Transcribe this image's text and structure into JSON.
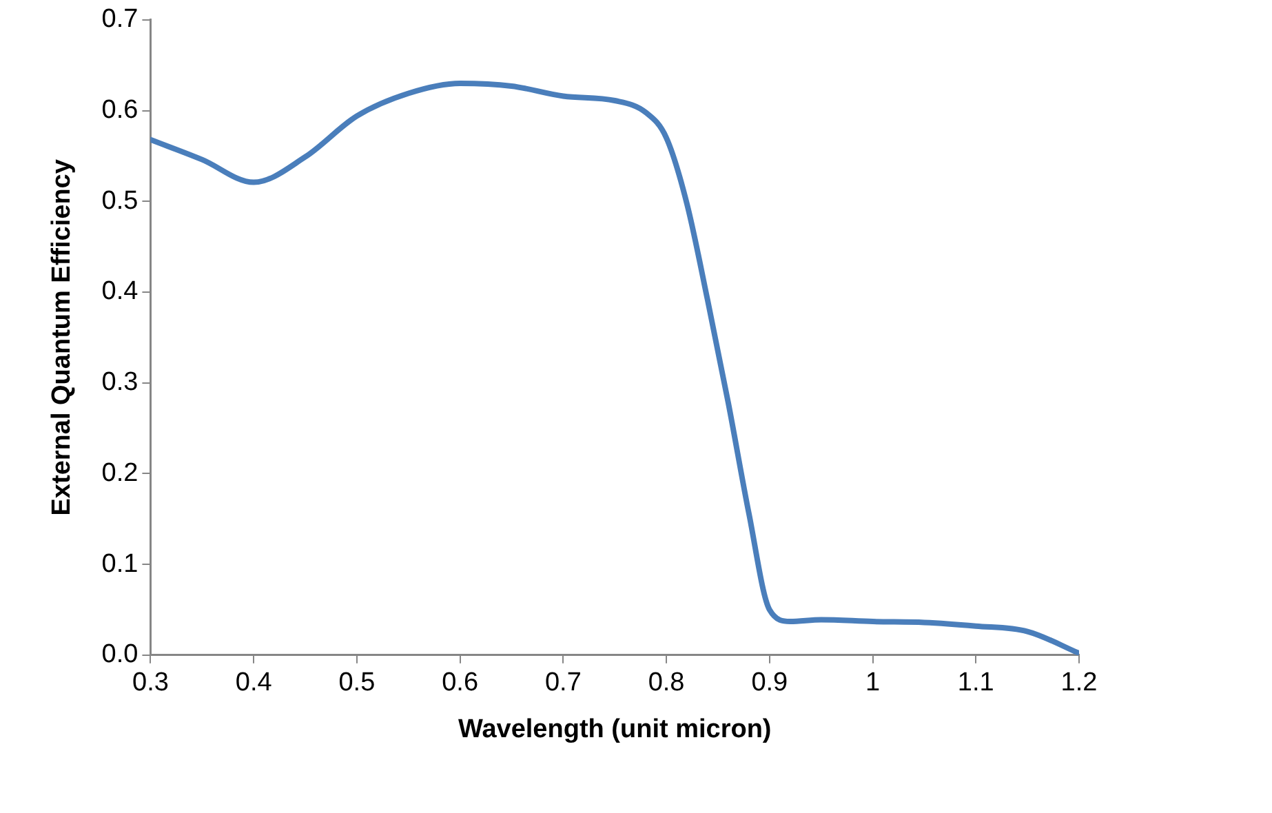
{
  "chart_data": {
    "type": "line",
    "xlabel": "Wavelength (unit micron)",
    "ylabel": "External Quantum Efficiency",
    "x": [
      0.3,
      0.35,
      0.4,
      0.45,
      0.5,
      0.55,
      0.6,
      0.65,
      0.7,
      0.75,
      0.78,
      0.8,
      0.82,
      0.84,
      0.86,
      0.88,
      0.9,
      0.92,
      0.95,
      1.0,
      1.05,
      1.1,
      1.15,
      1.2
    ],
    "series": [
      {
        "color": "#4a7ebb",
        "values": [
          0.568,
          0.546,
          0.521,
          0.549,
          0.594,
          0.619,
          0.63,
          0.627,
          0.616,
          0.611,
          0.598,
          0.57,
          0.497,
          0.391,
          0.278,
          0.156,
          0.05,
          0.037,
          0.039,
          0.037,
          0.036,
          0.032,
          0.026,
          0.002
        ]
      }
    ],
    "xlim": [
      0.3,
      1.2
    ],
    "xticks": [
      0.3,
      0.4,
      0.5,
      0.6,
      0.7,
      0.8,
      0.9,
      1,
      1.1,
      1.2
    ],
    "ylim": [
      0,
      0.7
    ],
    "yticks": [
      {
        "value": 0,
        "label": "0.0"
      },
      0.1,
      0.2,
      0.3,
      0.4,
      0.5,
      0.6,
      0.7
    ],
    "grid": false,
    "legend": false,
    "marker": "none",
    "line_style": "solid"
  }
}
